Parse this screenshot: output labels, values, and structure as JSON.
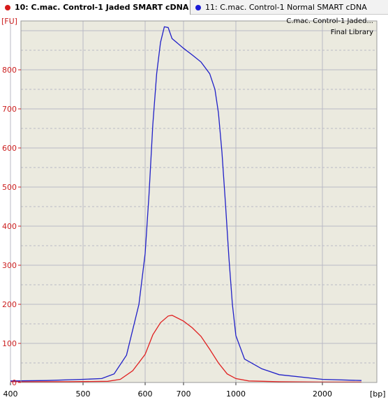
{
  "tabs": [
    {
      "label": "10: C.mac. Control-1 Jaded SMART cDNA",
      "color": "#d61a1a",
      "active": true
    },
    {
      "label": "11: C.mac. Control-1 Normal SMART cDNA",
      "color": "#1a1ad6",
      "active": false
    }
  ],
  "colors": {
    "plot_bg": "#ebeadf",
    "grid": "#b9b9c6",
    "axis": "#cc2020"
  },
  "chart_data": {
    "type": "line",
    "y_unit": "[FU]",
    "x_unit": "[bp]",
    "ylim": [
      0,
      900
    ],
    "y_ticks": [
      0,
      100,
      200,
      300,
      400,
      500,
      600,
      700,
      800
    ],
    "x_ticks": [
      400,
      500,
      600,
      700,
      1000,
      2000
    ],
    "x_scale": "nonlinear sizing ladder",
    "grid": true,
    "legend_position": "top-right",
    "legend": [
      "C.mac. Control-1 Jaded...",
      "Final Library"
    ],
    "series": [
      {
        "name": "C.mac. Control-1 Jaded SMART cDNA",
        "color": "#e02020",
        "points": [
          [
            400,
            2
          ],
          [
            480,
            2
          ],
          [
            540,
            3
          ],
          [
            560,
            8
          ],
          [
            580,
            30
          ],
          [
            600,
            72
          ],
          [
            620,
            122
          ],
          [
            640,
            153
          ],
          [
            660,
            170
          ],
          [
            670,
            172
          ],
          [
            700,
            157
          ],
          [
            750,
            140
          ],
          [
            800,
            118
          ],
          [
            850,
            85
          ],
          [
            900,
            50
          ],
          [
            950,
            22
          ],
          [
            1000,
            10
          ],
          [
            1150,
            4
          ],
          [
            1500,
            2
          ],
          [
            2000,
            1
          ],
          [
            3000,
            1
          ]
        ]
      },
      {
        "name": "C.mac. Control-1 Normal SMART cDNA",
        "color": "#2020c8",
        "points": [
          [
            400,
            4
          ],
          [
            450,
            5
          ],
          [
            500,
            8
          ],
          [
            530,
            10
          ],
          [
            550,
            22
          ],
          [
            570,
            70
          ],
          [
            590,
            200
          ],
          [
            600,
            330
          ],
          [
            610,
            480
          ],
          [
            620,
            660
          ],
          [
            630,
            790
          ],
          [
            640,
            870
          ],
          [
            650,
            910
          ],
          [
            660,
            908
          ],
          [
            670,
            880
          ],
          [
            700,
            855
          ],
          [
            750,
            838
          ],
          [
            800,
            820
          ],
          [
            850,
            790
          ],
          [
            880,
            750
          ],
          [
            900,
            690
          ],
          [
            920,
            590
          ],
          [
            940,
            460
          ],
          [
            960,
            320
          ],
          [
            980,
            200
          ],
          [
            1000,
            120
          ],
          [
            1100,
            60
          ],
          [
            1300,
            35
          ],
          [
            1500,
            20
          ],
          [
            2000,
            8
          ],
          [
            3000,
            5
          ]
        ]
      }
    ]
  }
}
